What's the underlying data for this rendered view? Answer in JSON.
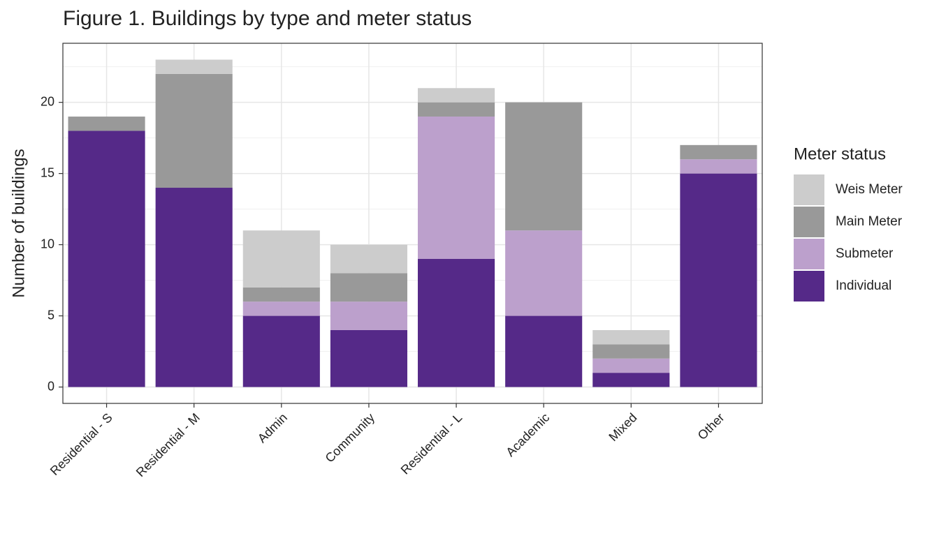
{
  "chart_data": {
    "type": "stacked_bar",
    "title": "Figure 1. Buildings by type and meter status",
    "y_label": "Number of buildings",
    "legend_title": "Meter status",
    "categories": [
      "Residential - S",
      "Residential - M",
      "Admin",
      "Community",
      "Residential - L",
      "Academic",
      "Mixed",
      "Other"
    ],
    "series": [
      {
        "name": "Individual",
        "color": "#552988",
        "values": [
          18,
          14,
          5,
          4,
          9,
          5,
          1,
          15
        ]
      },
      {
        "name": "Submeter",
        "color": "#bca0cc",
        "values": [
          0,
          0,
          1,
          2,
          10,
          6,
          1,
          1
        ]
      },
      {
        "name": "Main Meter",
        "color": "#999999",
        "values": [
          1,
          8,
          1,
          2,
          1,
          9,
          1,
          1
        ]
      },
      {
        "name": "Weis Meter",
        "color": "#cccccc",
        "values": [
          0,
          1,
          4,
          2,
          1,
          0,
          1,
          0
        ]
      }
    ],
    "ylim": [
      -1.15,
      24.15
    ],
    "yticks": [
      0,
      5,
      10,
      15,
      20
    ],
    "grid": true,
    "legend": "right"
  }
}
